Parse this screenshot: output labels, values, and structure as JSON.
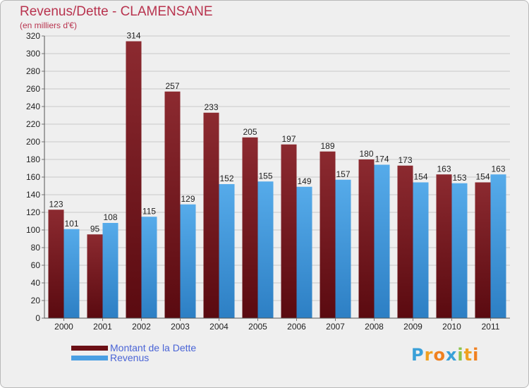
{
  "chart_data": {
    "type": "bar",
    "title": "Revenus/Dette - CLAMENSANE",
    "subtitle": "(en milliers d'€)",
    "categories": [
      "2000",
      "2001",
      "2002",
      "2003",
      "2004",
      "2005",
      "2006",
      "2007",
      "2008",
      "2009",
      "2010",
      "2011"
    ],
    "series": [
      {
        "name": "Montant de la Dette",
        "color": "#7a1a22",
        "values": [
          123,
          95,
          314,
          257,
          233,
          205,
          197,
          189,
          180,
          173,
          163,
          154
        ]
      },
      {
        "name": "Revenus",
        "color": "#4a9fe3",
        "values": [
          101,
          108,
          115,
          129,
          152,
          155,
          149,
          157,
          174,
          154,
          153,
          163
        ]
      }
    ],
    "ylim": [
      0,
      320
    ],
    "yticks": [
      0,
      20,
      40,
      60,
      80,
      100,
      120,
      140,
      160,
      180,
      200,
      220,
      240,
      260,
      280,
      300,
      320
    ],
    "grid": true,
    "legend": "bottom-left"
  },
  "legend": {
    "items": [
      {
        "label": "Montant de la Dette",
        "color": "#6b0f15"
      },
      {
        "label": "Revenus",
        "color": "#4a9fe3"
      }
    ]
  },
  "logo": {
    "letters": [
      "P",
      "r",
      "o",
      "x",
      "i",
      "t",
      "i"
    ],
    "colors": [
      "#3aa0d8",
      "#f0a020",
      "#f08020",
      "#3aa0d8",
      "#8bc34a",
      "#f0a020",
      "#f08020"
    ]
  }
}
